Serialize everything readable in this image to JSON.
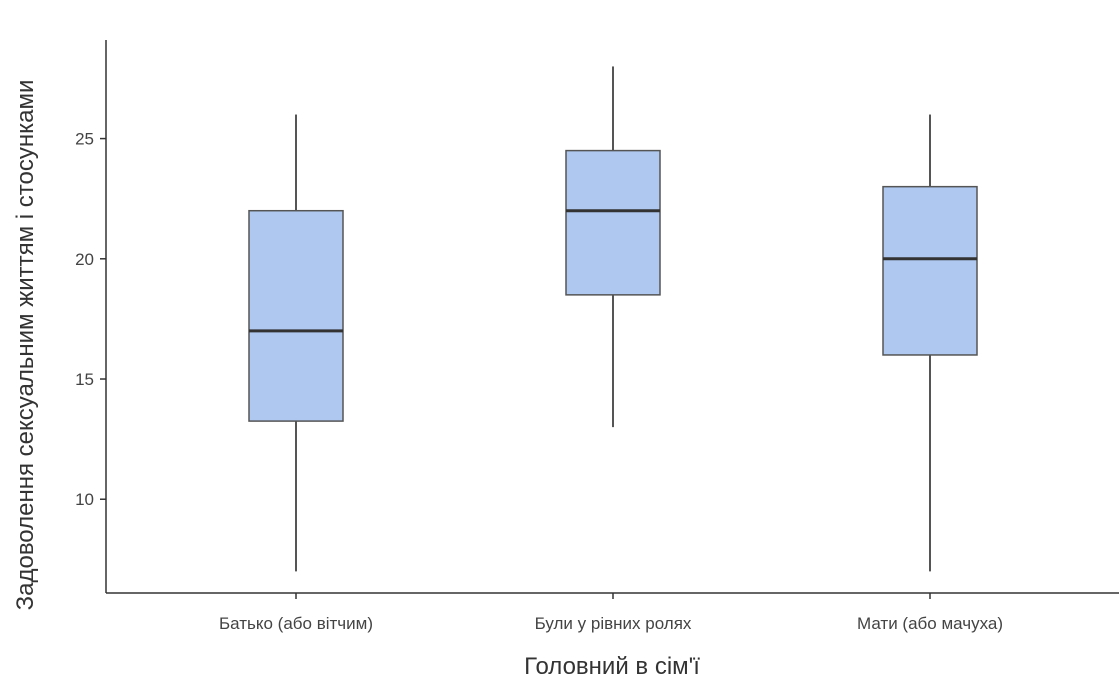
{
  "chart_data": {
    "type": "boxplot",
    "xlabel": "Головний в сім'ї",
    "ylabel": "Задоволення сексуальним життям і стосунками",
    "categories": [
      "Батько (або вітчим)",
      "Були у рівних ролях",
      "Мати (або мачуха)"
    ],
    "boxes": [
      {
        "category": "Батько (або вітчим)",
        "min": 7,
        "q1": 13.25,
        "median": 17,
        "q3": 22,
        "max": 26
      },
      {
        "category": "Були у рівних ролях",
        "min": 13,
        "q1": 18.5,
        "median": 22,
        "q3": 24.5,
        "max": 28
      },
      {
        "category": "Мати (або мачуха)",
        "min": 7,
        "q1": 16,
        "median": 20,
        "q3": 23,
        "max": 26
      }
    ],
    "yticks": [
      10,
      15,
      20,
      25
    ],
    "ylim": [
      6.1,
      29.1
    ],
    "grid": false,
    "colors": {
      "box_fill": "#aec8f0",
      "box_stroke": "#555555",
      "median": "#333333",
      "whisker": "#555555",
      "axis": "#333333"
    }
  }
}
